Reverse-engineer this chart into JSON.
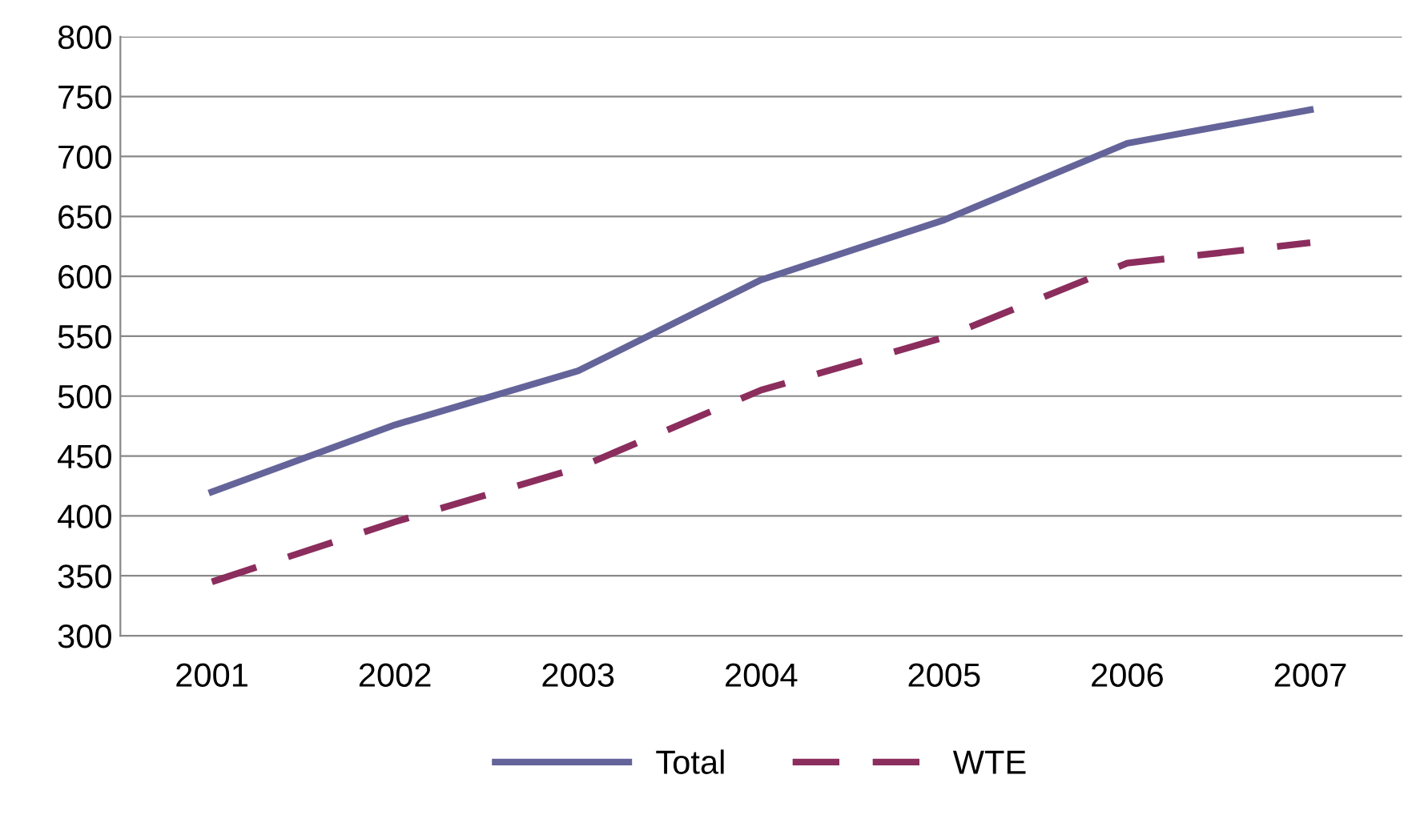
{
  "chart_data": {
    "type": "line",
    "categories": [
      "2001",
      "2002",
      "2003",
      "2004",
      "2005",
      "2006",
      "2007"
    ],
    "series": [
      {
        "name": "Total",
        "color": "#64649a",
        "values": [
          420,
          476,
          521,
          597,
          647,
          711,
          739
        ],
        "line_style": "solid"
      },
      {
        "name": "WTE",
        "color": "#8b2d5d",
        "values": [
          345,
          395,
          440,
          505,
          549,
          611,
          628
        ],
        "line_style": "dashed"
      }
    ],
    "ylim": [
      300,
      800
    ],
    "yticks": [
      300,
      350,
      400,
      450,
      500,
      550,
      600,
      650,
      700,
      750,
      800
    ],
    "grid": "y",
    "legend": "bottom",
    "marker": "none"
  }
}
